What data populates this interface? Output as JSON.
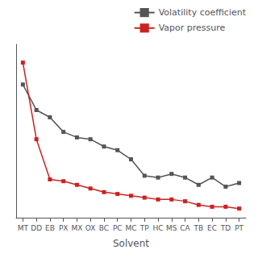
{
  "chart_data": {
    "type": "line",
    "xlabel": "Solvent",
    "categories": [
      "MT",
      "DD",
      "EB",
      "PX",
      "MX",
      "OX",
      "BC",
      "PC",
      "MC",
      "TP",
      "HC",
      "MS",
      "CA",
      "TB",
      "EC",
      "TD",
      "PT"
    ],
    "series": [
      {
        "name": "Volatility coefficient",
        "color": "#555555",
        "marker": "square",
        "values": [
          0.88,
          0.74,
          0.7,
          0.62,
          0.59,
          0.58,
          0.54,
          0.52,
          0.47,
          0.38,
          0.37,
          0.39,
          0.37,
          0.33,
          0.37,
          0.32,
          0.34
        ]
      },
      {
        "name": "Vapor pressure",
        "color": "#cc2222",
        "marker": "square",
        "values": [
          1.0,
          0.58,
          0.36,
          0.35,
          0.33,
          0.31,
          0.29,
          0.28,
          0.27,
          0.26,
          0.25,
          0.25,
          0.24,
          0.22,
          0.21,
          0.21,
          0.2
        ]
      }
    ],
    "ylim": [
      0.15,
      1.1
    ],
    "yticks": [],
    "tick_labels": "x",
    "grid": false,
    "legend": "upper right"
  }
}
